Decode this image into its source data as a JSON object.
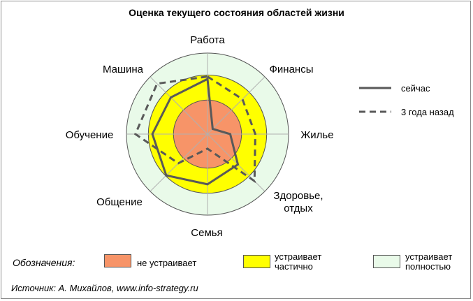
{
  "title": "Оценка текущего состояния областей жизни",
  "chart_data": {
    "type": "radar",
    "categories": [
      "Работа",
      "Финансы",
      "Жилье",
      "Здоровье, отдых",
      "Семья",
      "Общение",
      "Обучение",
      "Машина"
    ],
    "label_lines": [
      [
        "Работа"
      ],
      [
        "Финансы"
      ],
      [
        "Жилье"
      ],
      [
        "Здоровье,",
        "отдых"
      ],
      [
        "Семья"
      ],
      [
        "Общение"
      ],
      [
        "Обучение"
      ],
      [
        "Машина"
      ]
    ],
    "rmax": 10,
    "zones": [
      {
        "label": "не устраивает",
        "from": 0,
        "to": 4.2,
        "color": "#f79468"
      },
      {
        "label": "устраивает частично",
        "from": 4.2,
        "to": 7.3,
        "color": "#ffff00"
      },
      {
        "label": "устраивает полностью",
        "from": 7.3,
        "to": 10,
        "color": "#e9fae9"
      }
    ],
    "series": [
      {
        "name": "сейчас",
        "style": "solid",
        "color": "#595959",
        "values": [
          6.8,
          0.9,
          2.8,
          5.3,
          6.2,
          7.2,
          6.8,
          6.4
        ]
      },
      {
        "name": "3 года назад",
        "style": "dashed",
        "color": "#595959",
        "values": [
          7.1,
          6.1,
          5.9,
          8.2,
          1.8,
          5.1,
          8.9,
          8.8
        ]
      }
    ]
  },
  "legend": {
    "zones_title": "Обозначения:",
    "zones": [
      {
        "lines": [
          "не устраивает"
        ],
        "color": "#f79468"
      },
      {
        "lines": [
          "устраивает",
          "частично"
        ],
        "color": "#ffff00"
      },
      {
        "lines": [
          "устраивает",
          "полностью"
        ],
        "color": "#e9fae9"
      }
    ]
  },
  "source": "Источник: А. Михайлов, www.info-strategy.ru"
}
